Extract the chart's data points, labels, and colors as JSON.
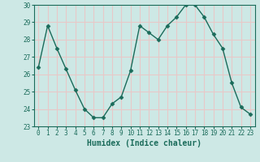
{
  "x": [
    0,
    1,
    2,
    3,
    4,
    5,
    6,
    7,
    8,
    9,
    10,
    11,
    12,
    13,
    14,
    15,
    16,
    17,
    18,
    19,
    20,
    21,
    22,
    23
  ],
  "y": [
    26.4,
    28.8,
    27.5,
    26.3,
    25.1,
    24.0,
    23.5,
    23.5,
    24.3,
    24.7,
    26.2,
    28.8,
    28.4,
    28.0,
    28.8,
    29.3,
    30.0,
    30.0,
    29.3,
    28.3,
    27.5,
    25.5,
    24.1,
    23.7
  ],
  "line_color": "#1a6b5a",
  "marker": "D",
  "markersize": 2.5,
  "linewidth": 1.0,
  "xlabel": "Humidex (Indice chaleur)",
  "ylim": [
    23,
    30
  ],
  "xlim": [
    -0.5,
    23.5
  ],
  "yticks": [
    23,
    24,
    25,
    26,
    27,
    28,
    29,
    30
  ],
  "xticks": [
    0,
    1,
    2,
    3,
    4,
    5,
    6,
    7,
    8,
    9,
    10,
    11,
    12,
    13,
    14,
    15,
    16,
    17,
    18,
    19,
    20,
    21,
    22,
    23
  ],
  "xtick_labels": [
    "0",
    "1",
    "2",
    "3",
    "4",
    "5",
    "6",
    "7",
    "8",
    "9",
    "10",
    "11",
    "12",
    "13",
    "14",
    "15",
    "16",
    "17",
    "18",
    "19",
    "20",
    "21",
    "22",
    "23"
  ],
  "background_color": "#cde8e5",
  "grid_color": "#e8c8c8",
  "tick_fontsize": 5.5,
  "label_fontsize": 7,
  "tick_color": "#1a6b5a",
  "label_color": "#1a6b5a"
}
